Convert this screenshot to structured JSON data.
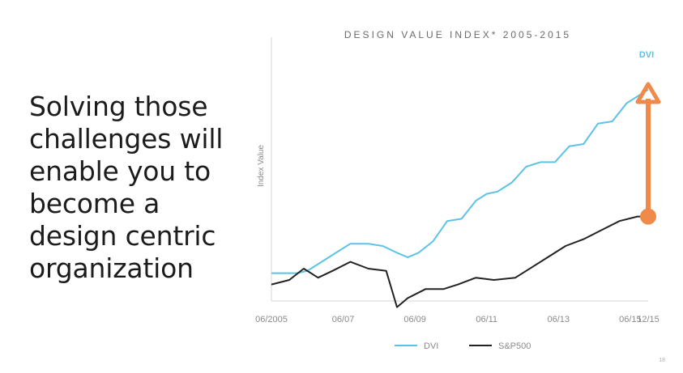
{
  "slide": {
    "headline": "Solving those challenges will enable you to become a design centric organization",
    "page_number": "18"
  },
  "colors": {
    "dvi": "#5bc3e6",
    "sp500": "#222222",
    "accent": "#f08a4b",
    "axis": "#d6d6d6"
  },
  "chart_data": {
    "type": "line",
    "title": "DESIGN VALUE INDEX* 2005-2015",
    "ylabel": "Index Value",
    "xlabel": "",
    "x_tick_labels": [
      "06/2005",
      "06/07",
      "06/09",
      "06/11",
      "06/13",
      "06/15",
      "12/15"
    ],
    "x_ticks": [
      2005.5,
      2007.5,
      2009.5,
      2011.5,
      2013.5,
      2015.5,
      2016.0
    ],
    "xlim": [
      2005.5,
      2016.0
    ],
    "ylim": [
      0,
      100
    ],
    "grid": false,
    "legend_position": "bottom",
    "series": [
      {
        "name": "DVI",
        "color": "#5bc3e6",
        "end_label": "DVI",
        "x": [
          2005.5,
          2006.2,
          2006.5,
          2006.9,
          2007.3,
          2007.7,
          2008.2,
          2008.6,
          2009.0,
          2009.3,
          2009.6,
          2010.0,
          2010.4,
          2010.8,
          2011.2,
          2011.5,
          2011.8,
          2012.2,
          2012.6,
          2013.0,
          2013.4,
          2013.8,
          2014.2,
          2014.6,
          2015.0,
          2015.4,
          2015.8,
          2016.0
        ],
        "y": [
          8,
          8,
          9,
          13,
          17,
          21,
          21,
          20,
          17,
          15,
          17,
          22,
          31,
          32,
          40,
          43,
          44,
          48,
          55,
          57,
          57,
          64,
          65,
          74,
          75,
          83,
          87,
          89
        ]
      },
      {
        "name": "S&P500",
        "color": "#222222",
        "x": [
          2005.5,
          2006.0,
          2006.4,
          2006.8,
          2007.2,
          2007.7,
          2008.2,
          2008.7,
          2009.0,
          2009.3,
          2009.8,
          2010.3,
          2010.7,
          2011.2,
          2011.7,
          2012.3,
          2012.8,
          2013.2,
          2013.7,
          2014.2,
          2014.7,
          2015.2,
          2015.7,
          2016.0
        ],
        "y": [
          3,
          5,
          10,
          6,
          9,
          13,
          10,
          9,
          -7,
          -3,
          1,
          1,
          3,
          6,
          5,
          6,
          11,
          15,
          20,
          23,
          27,
          31,
          33,
          33
        ]
      }
    ],
    "annotation": {
      "type": "arrow",
      "x": 2016.0,
      "y_from": 33,
      "y_to": 90
    }
  }
}
